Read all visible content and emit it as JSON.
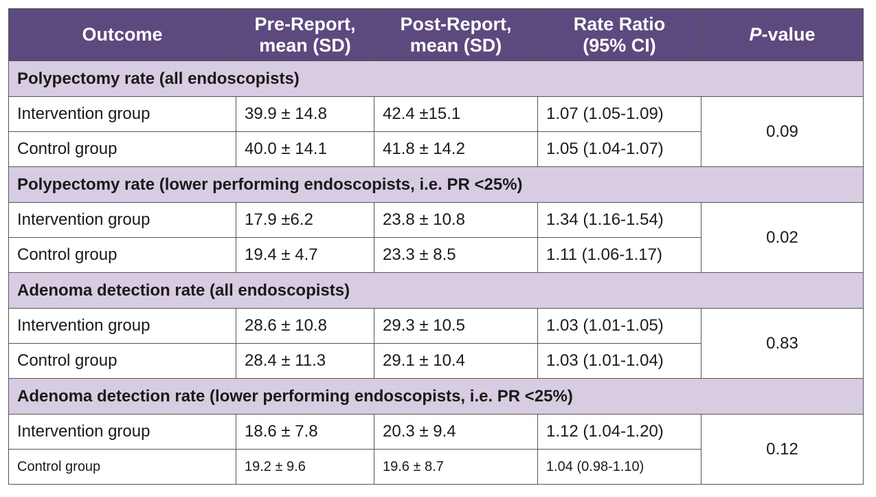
{
  "header": {
    "outcome": "Outcome",
    "pre_report_line1": "Pre-Report,",
    "pre_report_line2": "mean (SD)",
    "post_report_line1": "Post-Report,",
    "post_report_line2": "mean (SD)",
    "rate_ratio_line1": "Rate Ratio",
    "rate_ratio_line2": "(95% CI)",
    "pvalue_italic": "P",
    "pvalue_rest": "-value"
  },
  "sections": [
    {
      "title": "Polypectomy rate (all endoscopists)",
      "p_value": "0.09",
      "rows": [
        {
          "group": "Intervention group",
          "pre": "39.9 ± 14.8",
          "post": "42.4 ±15.1",
          "ratio": "1.07 (1.05-1.09)"
        },
        {
          "group": "Control group",
          "pre": "40.0 ± 14.1",
          "post": "41.8 ± 14.2",
          "ratio": "1.05 (1.04-1.07)"
        }
      ]
    },
    {
      "title": "Polypectomy rate (lower performing endoscopists, i.e. PR <25%)",
      "p_value": "0.02",
      "rows": [
        {
          "group": "Intervention group",
          "pre": "17.9 ±6.2",
          "post": "23.8 ± 10.8",
          "ratio": "1.34 (1.16-1.54)"
        },
        {
          "group": "Control group",
          "pre": "19.4 ± 4.7",
          "post": "23.3 ± 8.5",
          "ratio": "1.11 (1.06-1.17)"
        }
      ]
    },
    {
      "title": "Adenoma detection rate (all endoscopists)",
      "p_value": "0.83",
      "rows": [
        {
          "group": "Intervention group",
          "pre": "28.6 ± 10.8",
          "post": "29.3 ± 10.5",
          "ratio": "1.03 (1.01-1.05)"
        },
        {
          "group": "Control group",
          "pre": "28.4 ± 11.3",
          "post": "29.1 ± 10.4",
          "ratio": "1.03 (1.01-1.04)"
        }
      ]
    },
    {
      "title": "Adenoma detection rate (lower performing endoscopists, i.e. PR <25%)",
      "p_value": "0.12",
      "rows": [
        {
          "group": "Intervention group",
          "pre": "18.6 ± 7.8",
          "post": "20.3 ± 9.4",
          "ratio": "1.12 (1.04-1.20)"
        },
        {
          "group": "Control group",
          "pre": "19.2 ± 9.6",
          "post": "19.6 ± 8.7",
          "ratio": "1.04 (0.98-1.10)"
        }
      ]
    }
  ],
  "colors": {
    "header_bg": "#5c4a7e",
    "section_bg": "#d7cce2",
    "border": "#555555"
  }
}
